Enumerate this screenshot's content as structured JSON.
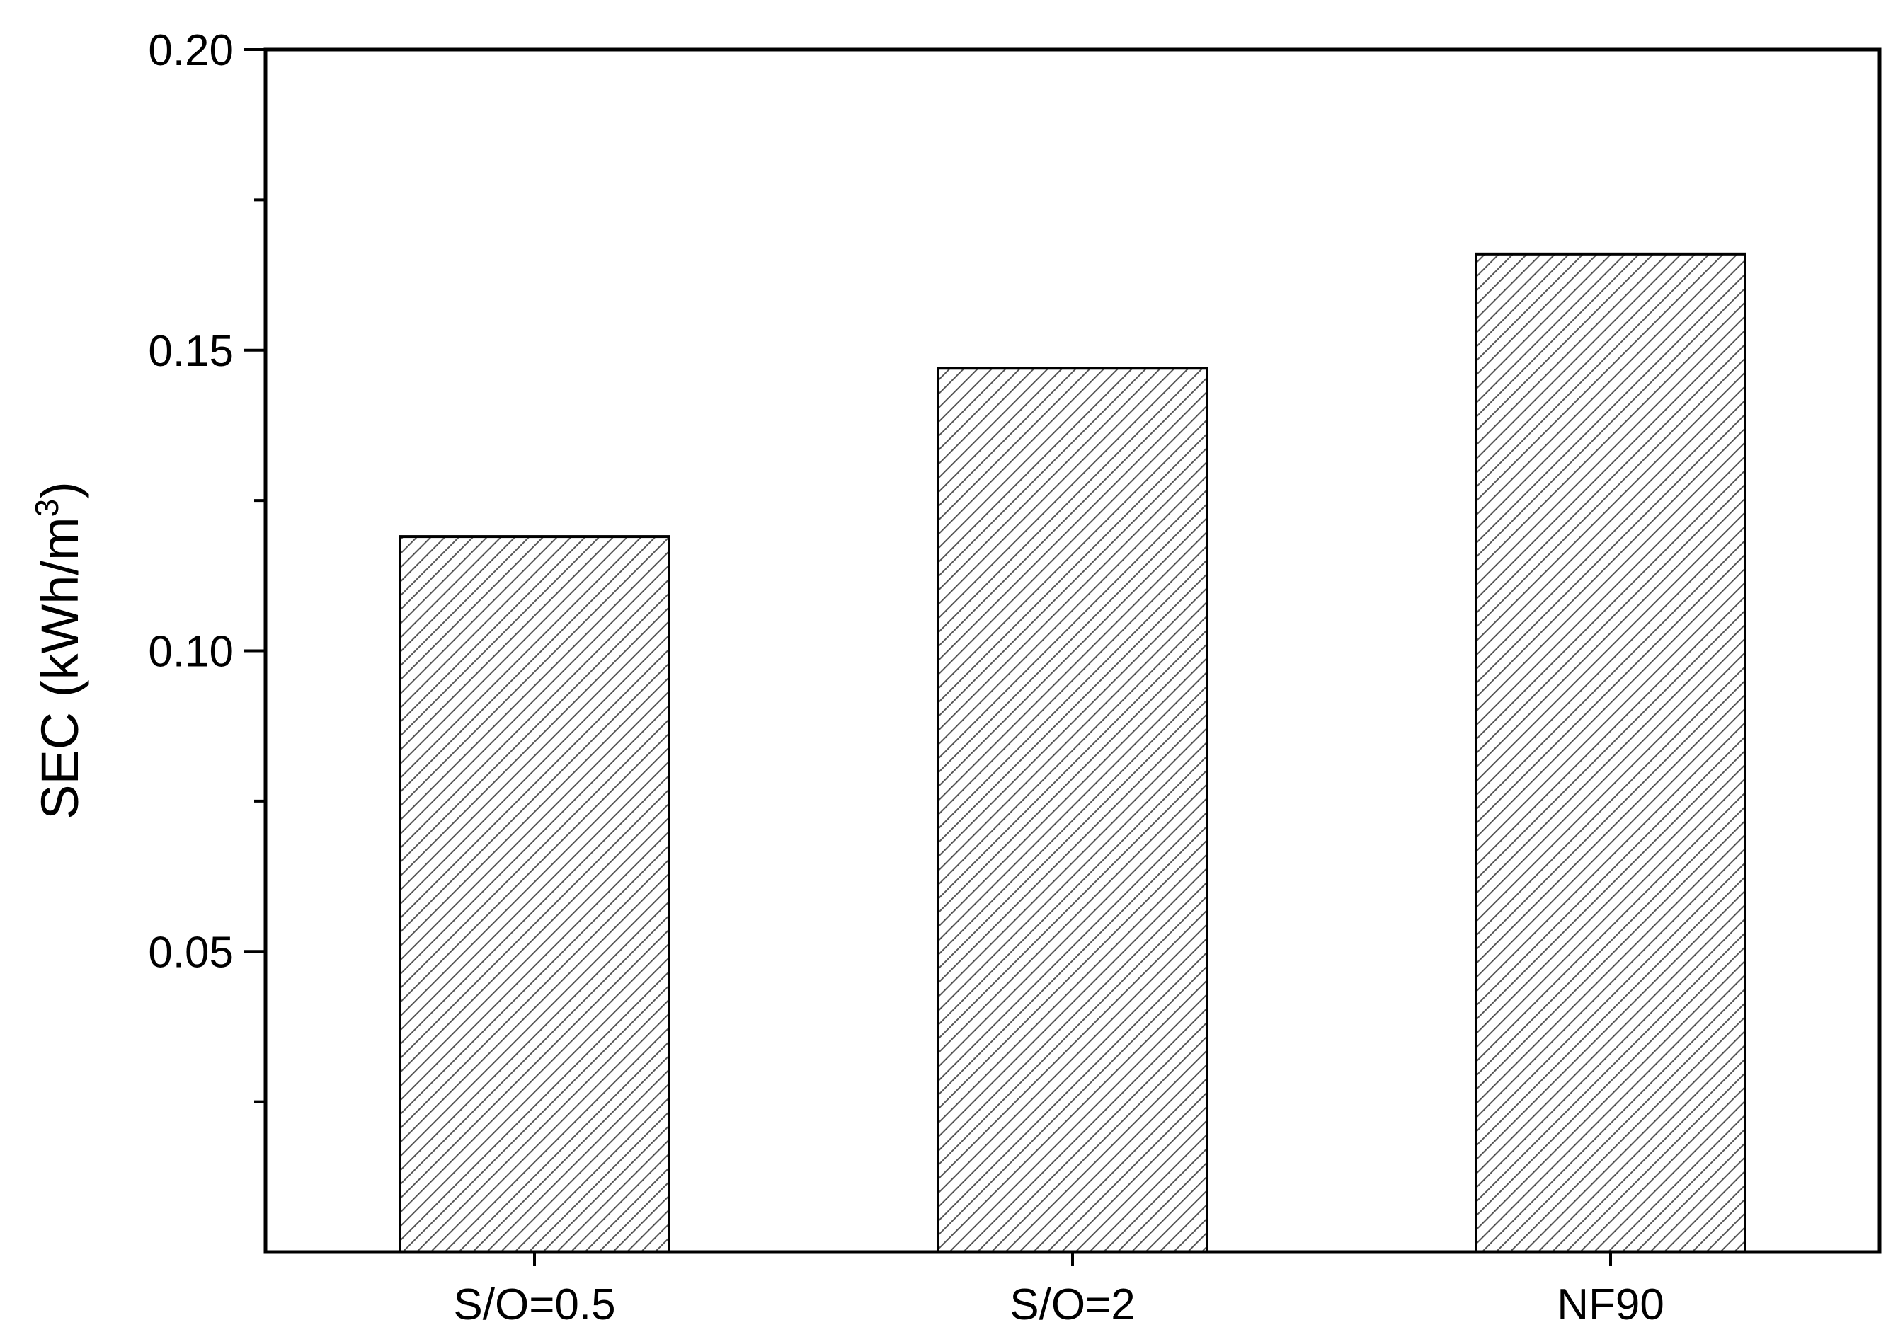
{
  "chart_data": {
    "type": "bar",
    "title": "",
    "xlabel": "",
    "ylabel": "SEC (kWh/m",
    "ylabel_superscript": "3",
    "ylabel_close": ")",
    "categories": [
      "S/O=0.5",
      "S/O=2",
      "NF90"
    ],
    "values": [
      0.119,
      0.147,
      0.166
    ],
    "ylim": [
      0,
      0.2
    ],
    "yticks": [
      "0.05",
      "0.10",
      "0.15",
      "0.20"
    ],
    "grid": false,
    "legend": "none",
    "bar_fill": "hatched",
    "bar_color": "#ffffff",
    "hatch_color": "#555555",
    "axis_color": "#000000"
  }
}
